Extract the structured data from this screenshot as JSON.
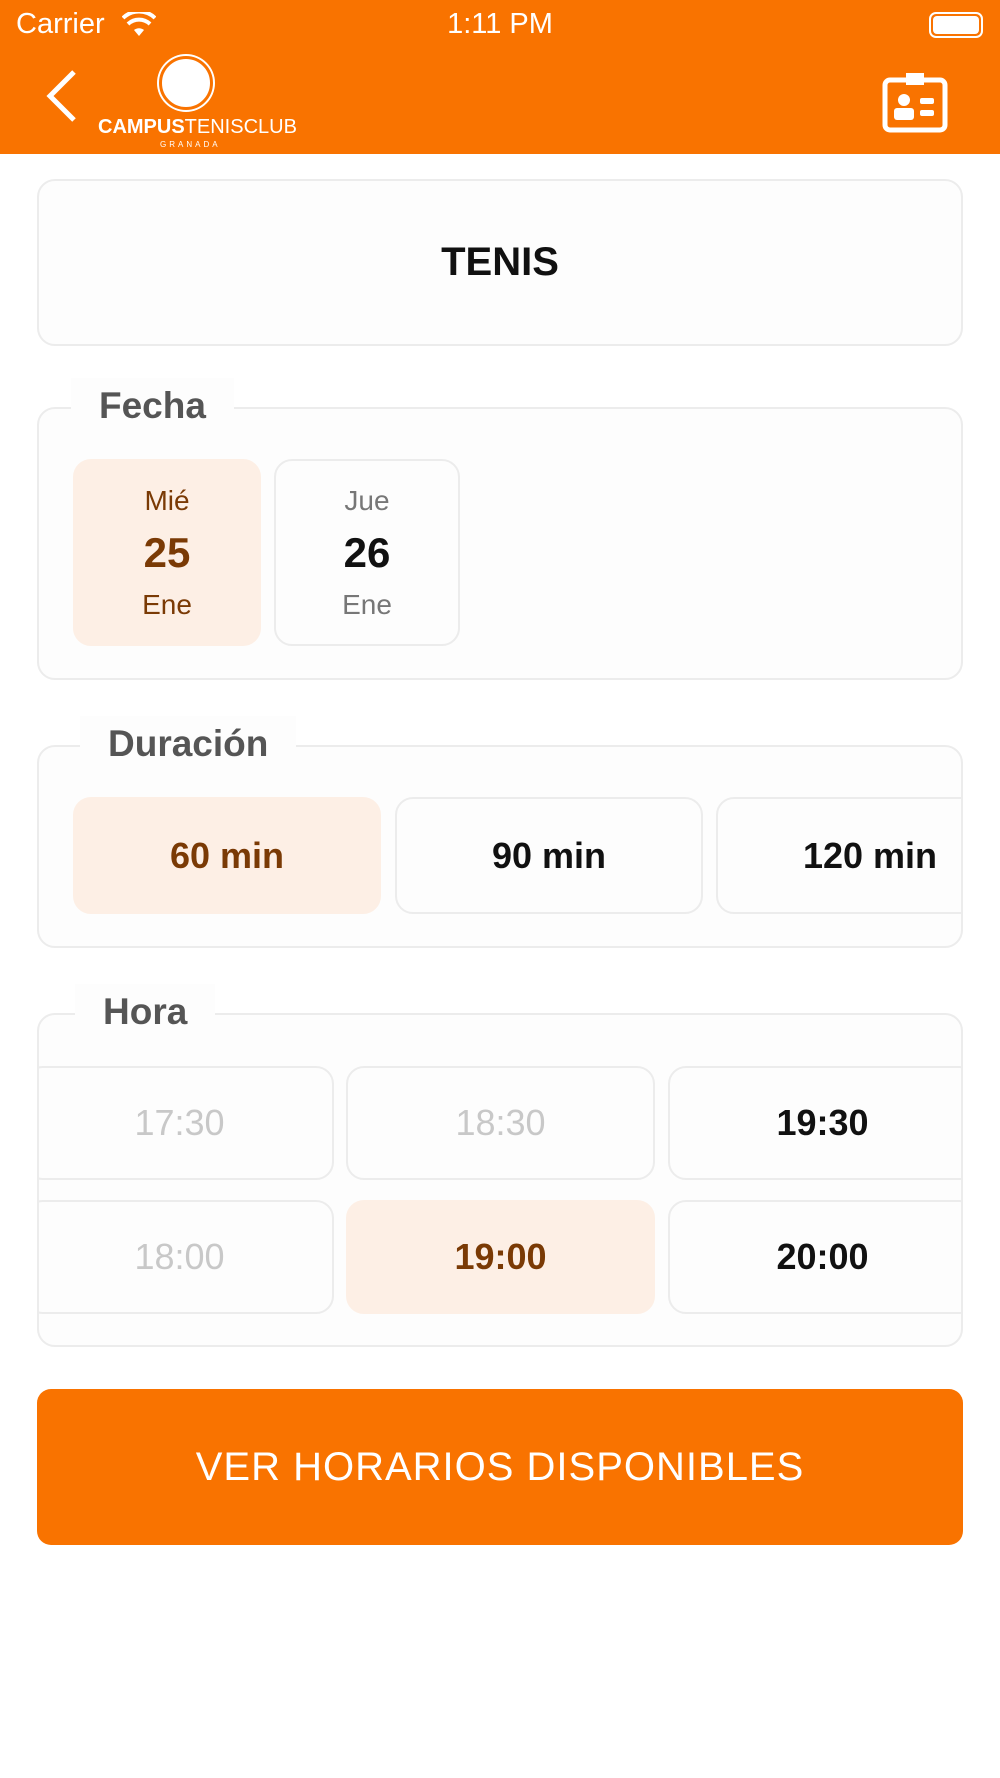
{
  "status_bar": {
    "carrier": "Carrier",
    "time": "1:11 PM"
  },
  "header": {
    "logo_text_bold": "CAMPUS",
    "logo_text_light": "TENISCLUB",
    "logo_sub": "GRANADA"
  },
  "sport": "TENIS",
  "fecha": {
    "label": "Fecha",
    "dates": [
      {
        "day": "Mié",
        "num": "25",
        "month": "Ene",
        "selected": true
      },
      {
        "day": "Jue",
        "num": "26",
        "month": "Ene",
        "selected": false
      }
    ]
  },
  "duracion": {
    "label": "Duración",
    "options": [
      {
        "label": "60 min",
        "selected": true
      },
      {
        "label": "90 min"
      },
      {
        "label": "120 min"
      }
    ]
  },
  "hora": {
    "label": "Hora",
    "slots": [
      {
        "label": "17:30",
        "disabled": true
      },
      {
        "label": "18:30",
        "disabled": true
      },
      {
        "label": "19:30"
      },
      {
        "label": "18:00",
        "disabled": true
      },
      {
        "label": "19:00",
        "selected": true
      },
      {
        "label": "20:00"
      }
    ]
  },
  "button": "VER HORARIOS DISPONIBLES",
  "colors": {
    "brand": "#f97300",
    "selected_bg": "#fdefe5",
    "selected_text": "#7a3a05"
  }
}
